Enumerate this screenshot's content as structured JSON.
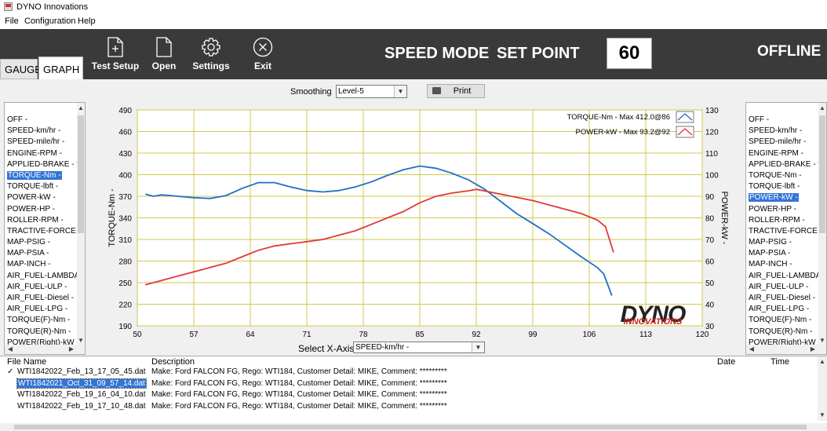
{
  "window": {
    "title": "DYNO Innovations"
  },
  "menu": [
    "File",
    "Configuration",
    "Help"
  ],
  "tabs": [
    "GAUGE",
    "GRAPH"
  ],
  "toolbar": {
    "buttons": [
      "Test Setup",
      "Open",
      "Settings",
      "Exit"
    ],
    "speed_mode": "SPEED MODE",
    "set_point_label": "SET POINT",
    "set_point_value": "60",
    "status": "OFFLINE"
  },
  "controls": {
    "smoothing_label": "Smoothing",
    "smoothing_value": "Level-5",
    "print_label": "Print",
    "x_axis_label": "Select X-Axis",
    "x_axis_value": "SPEED-km/hr -"
  },
  "left_list": {
    "items": [
      "OFF -",
      "SPEED-km/hr -",
      "SPEED-mile/hr -",
      "ENGINE-RPM -",
      "APPLIED-BRAKE - %",
      "TORQUE-Nm -",
      "TORQUE-lbft -",
      "POWER-kW -",
      "POWER-HP -",
      "ROLLER-RPM -",
      "TRACTIVE-FORCE - N",
      "MAP-PSIG -",
      "MAP-PSIA -",
      "MAP-INCH -",
      "AIR_FUEL-LAMBDA -",
      "AIR_FUEL-ULP -",
      "AIR_FUEL-Diesel -",
      "AIR_FUEL-LPG -",
      "TORQUE(F)-Nm -",
      "TORQUE(R)-Nm -",
      "POWER(Right)-kW -"
    ],
    "selected": "TORQUE-Nm -"
  },
  "right_list": {
    "items": [
      "OFF -",
      "SPEED-km/hr -",
      "SPEED-mile/hr -",
      "ENGINE-RPM -",
      "APPLIED-BRAKE - %",
      "TORQUE-Nm -",
      "TORQUE-lbft -",
      "POWER-kW -",
      "POWER-HP -",
      "ROLLER-RPM -",
      "TRACTIVE-FORCE - N",
      "MAP-PSIG -",
      "MAP-PSIA -",
      "MAP-INCH -",
      "AIR_FUEL-LAMBDA -",
      "AIR_FUEL-ULP -",
      "AIR_FUEL-Diesel -",
      "AIR_FUEL-LPG -",
      "TORQUE(F)-Nm -",
      "TORQUE(R)-Nm -",
      "POWER(Right)-kW -"
    ],
    "selected": "POWER-kW -"
  },
  "logo": {
    "line1": "DYNO",
    "line2": "INNOVATIONS"
  },
  "files": {
    "headers": [
      "File Name",
      "Description",
      "Date",
      "Time"
    ],
    "rows": [
      {
        "check": "✓",
        "name": "WTI1842022_Feb_13_17_05_45.dat",
        "desc": "Make: Ford FALCON FG, Rego: WTI184, Customer Detail: MIKE, Comment: *********"
      },
      {
        "check": "",
        "name": "WTI1842021_Oct_31_09_57_14.dat",
        "desc": "Make: Ford FALCON FG, Rego: WTI184, Customer Detail: MIKE, Comment: *********"
      },
      {
        "check": "",
        "name": "WTI1842022_Feb_19_16_04_10.dat",
        "desc": "Make: Ford FALCON FG, Rego: WTI184, Customer Detail: MIKE, Comment: *********"
      },
      {
        "check": "",
        "name": "WTI1842022_Feb_19_17_10_48.dat",
        "desc": "Make: Ford FALCON FG, Rego: WTI184, Customer Detail: MIKE, Comment: *********"
      }
    ],
    "selected_row": 1
  },
  "colors": {
    "torque": "#1f6fc8",
    "power": "#e0393a",
    "grid": "#d1c84b",
    "plot_bg": "#ffffff",
    "toolbar_bg": "#3a3a3a",
    "logo_red": "#c6261e"
  },
  "chart_data": {
    "type": "line",
    "xlabel": "Select X-Axis",
    "ylabel": "TORQUE-Nm -",
    "y2label": "POWER-kW -",
    "xlim": [
      50,
      120
    ],
    "ylim": [
      190,
      490
    ],
    "y2lim": [
      30,
      130
    ],
    "xticks": [
      50,
      57,
      64,
      71,
      78,
      85,
      92,
      99,
      106,
      113,
      120
    ],
    "yticks": [
      190,
      220,
      250,
      280,
      310,
      340,
      370,
      400,
      430,
      460,
      490
    ],
    "y2ticks": [
      30,
      40,
      50,
      60,
      70,
      80,
      90,
      100,
      110,
      120,
      130
    ],
    "grid": true,
    "legend_position": "top-right",
    "series": [
      {
        "name": "TORQUE-Nm - Max 412.0@86",
        "axis": "left",
        "x": [
          51,
          52,
          53,
          55,
          57,
          59,
          61,
          63,
          65,
          67,
          69,
          71,
          73,
          75,
          77,
          79,
          81,
          83,
          85,
          87,
          89,
          91,
          93,
          95,
          97,
          99,
          101,
          103,
          105,
          107,
          107.8,
          108.8
        ],
        "y": [
          373,
          370,
          372,
          370,
          368,
          367,
          371,
          381,
          389,
          389,
          383,
          378,
          376,
          378,
          383,
          390,
          399,
          407,
          412,
          409,
          402,
          393,
          380,
          363,
          346,
          332,
          318,
          302,
          286,
          271,
          262,
          232
        ]
      },
      {
        "name": "POWER-kW - Max 93.2@92",
        "axis": "right",
        "x": [
          51,
          53,
          55,
          57,
          59,
          61,
          63,
          65,
          67,
          69,
          71,
          73,
          75,
          77,
          79,
          81,
          83,
          85,
          87,
          89,
          91,
          92,
          93,
          95,
          97,
          99,
          101,
          103,
          105,
          107,
          108,
          109
        ],
        "y": [
          49,
          51,
          53,
          55,
          57,
          59,
          62,
          65,
          67,
          68,
          69,
          70,
          72,
          74,
          77,
          80,
          83,
          87,
          90,
          91.5,
          92.5,
          93.2,
          92.5,
          91,
          89.5,
          88,
          86,
          84,
          82,
          79,
          76,
          64
        ]
      }
    ]
  }
}
